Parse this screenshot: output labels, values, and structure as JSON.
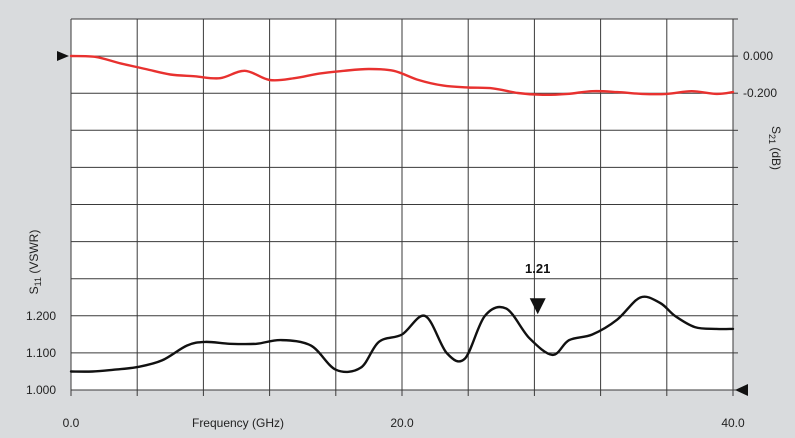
{
  "chart_data": {
    "type": "line",
    "background": "#d9dbdd",
    "plot_background": "#ffffff",
    "grid": true,
    "grid_color": "#3a3a3a",
    "xlabel": "Frequency (GHz)",
    "xlim": [
      0,
      40
    ],
    "x_tick_labels": [
      {
        "x": 0,
        "label": "0.0"
      },
      {
        "x": 20,
        "label": "20.0"
      },
      {
        "x": 40,
        "label": "40.0"
      }
    ],
    "series": [
      {
        "key": "s21",
        "axis": "right",
        "color": "#e8312f",
        "x": [
          0,
          1.5,
          3,
          4.5,
          6,
          7.5,
          9,
          10.5,
          12,
          13.5,
          15,
          16.5,
          18,
          19.5,
          21,
          22.5,
          24,
          25.5,
          27,
          28.5,
          30,
          31.5,
          33,
          34.5,
          36,
          37.5,
          39,
          40
        ],
        "values": [
          0.0,
          -0.005,
          -0.04,
          -0.07,
          -0.1,
          -0.11,
          -0.12,
          -0.08,
          -0.13,
          -0.12,
          -0.095,
          -0.08,
          -0.07,
          -0.08,
          -0.13,
          -0.16,
          -0.17,
          -0.175,
          -0.2,
          -0.21,
          -0.205,
          -0.19,
          -0.195,
          -0.205,
          -0.205,
          -0.19,
          -0.205,
          -0.195
        ]
      },
      {
        "key": "s11",
        "axis": "left",
        "color": "#111111",
        "x": [
          0,
          1.3,
          2.6,
          4,
          5.5,
          7,
          8.1,
          9.6,
          11.2,
          12.7,
          14.5,
          16,
          17.5,
          18.6,
          20,
          21.4,
          22.7,
          23.8,
          25,
          26.3,
          27.7,
          29.1,
          30.1,
          31.5,
          33,
          34.4,
          35.6,
          36.5,
          37.7,
          39,
          40
        ],
        "values": [
          1.05,
          1.05,
          1.055,
          1.062,
          1.08,
          1.12,
          1.13,
          1.125,
          1.125,
          1.135,
          1.12,
          1.055,
          1.06,
          1.13,
          1.15,
          1.2,
          1.1,
          1.085,
          1.2,
          1.22,
          1.14,
          1.095,
          1.135,
          1.15,
          1.19,
          1.25,
          1.235,
          1.2,
          1.17,
          1.165,
          1.165
        ]
      }
    ],
    "left_axis": {
      "label": "S11 (VSWR)",
      "label_main": "S",
      "label_sub": "11",
      "label_rest": " (VSWR)",
      "tick_labels": [
        {
          "value": 1.0,
          "label": "1.000"
        },
        {
          "value": 1.1,
          "label": "1.100"
        },
        {
          "value": 1.2,
          "label": "1.200"
        }
      ]
    },
    "right_axis": {
      "label": "S21 (dB)",
      "label_main": "S",
      "label_sub": "21",
      "label_rest": " (dB)",
      "tick_labels": [
        {
          "value": 0.0,
          "label": "0.000"
        },
        {
          "value": -0.2,
          "label": "-0.200"
        }
      ]
    },
    "annotation": {
      "label": "1.21",
      "x": 28.2,
      "value": 1.21,
      "axis": "left"
    }
  }
}
